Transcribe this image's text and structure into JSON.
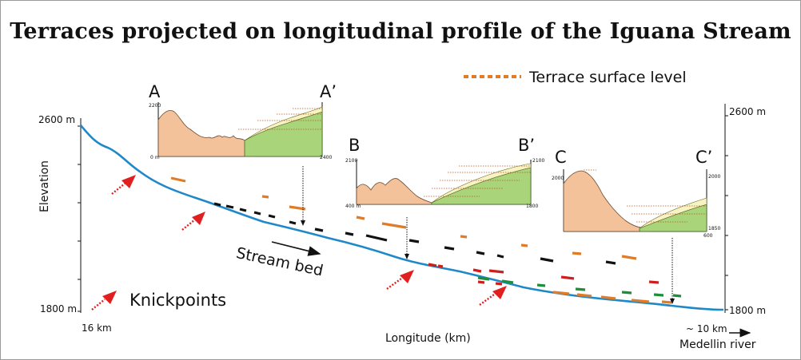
{
  "title": "Terraces projected on longitudinal profile of the Iguana Stream",
  "legend": {
    "terrace_label": "Terrace surface level",
    "terrace_color": "#e07b28"
  },
  "axes": {
    "y_top_left": "2600 m",
    "y_bottom_left": "1800 m",
    "y_top_right": "2600 m",
    "y_bottom_right": "1800 m",
    "y_label": "Elevation",
    "x_start": "16 km",
    "x_end": "~ 10 km",
    "x_label": "Longitude (km)",
    "river_label": "Medellin river"
  },
  "annotations": {
    "stream_bed": "Stream bed",
    "knickpoints": "Knickpoints"
  },
  "sections": {
    "a": {
      "left": "A",
      "right": "A’",
      "tl": "2200",
      "bl": "0 m",
      "br": "2400"
    },
    "b": {
      "left": "B",
      "right": "B’",
      "tl": "2100",
      "bl": "400 m",
      "tr": "2100",
      "br": "1800"
    },
    "c": {
      "left": "C",
      "right": "C’",
      "tl": "2000",
      "tr": "2000",
      "br": "1850",
      "bl2": "600"
    }
  },
  "colors": {
    "stream": "#1f88c9",
    "knick_arrow": "#e02020",
    "terrace_orange": "#e07b28",
    "terrace_black": "#111111",
    "terrace_red": "#cc1f1f",
    "terrace_green": "#1d8f3a",
    "rock": "#f3c29b",
    "fill_green": "#a9d47a",
    "fill_cream": "#f7f3c4"
  }
}
